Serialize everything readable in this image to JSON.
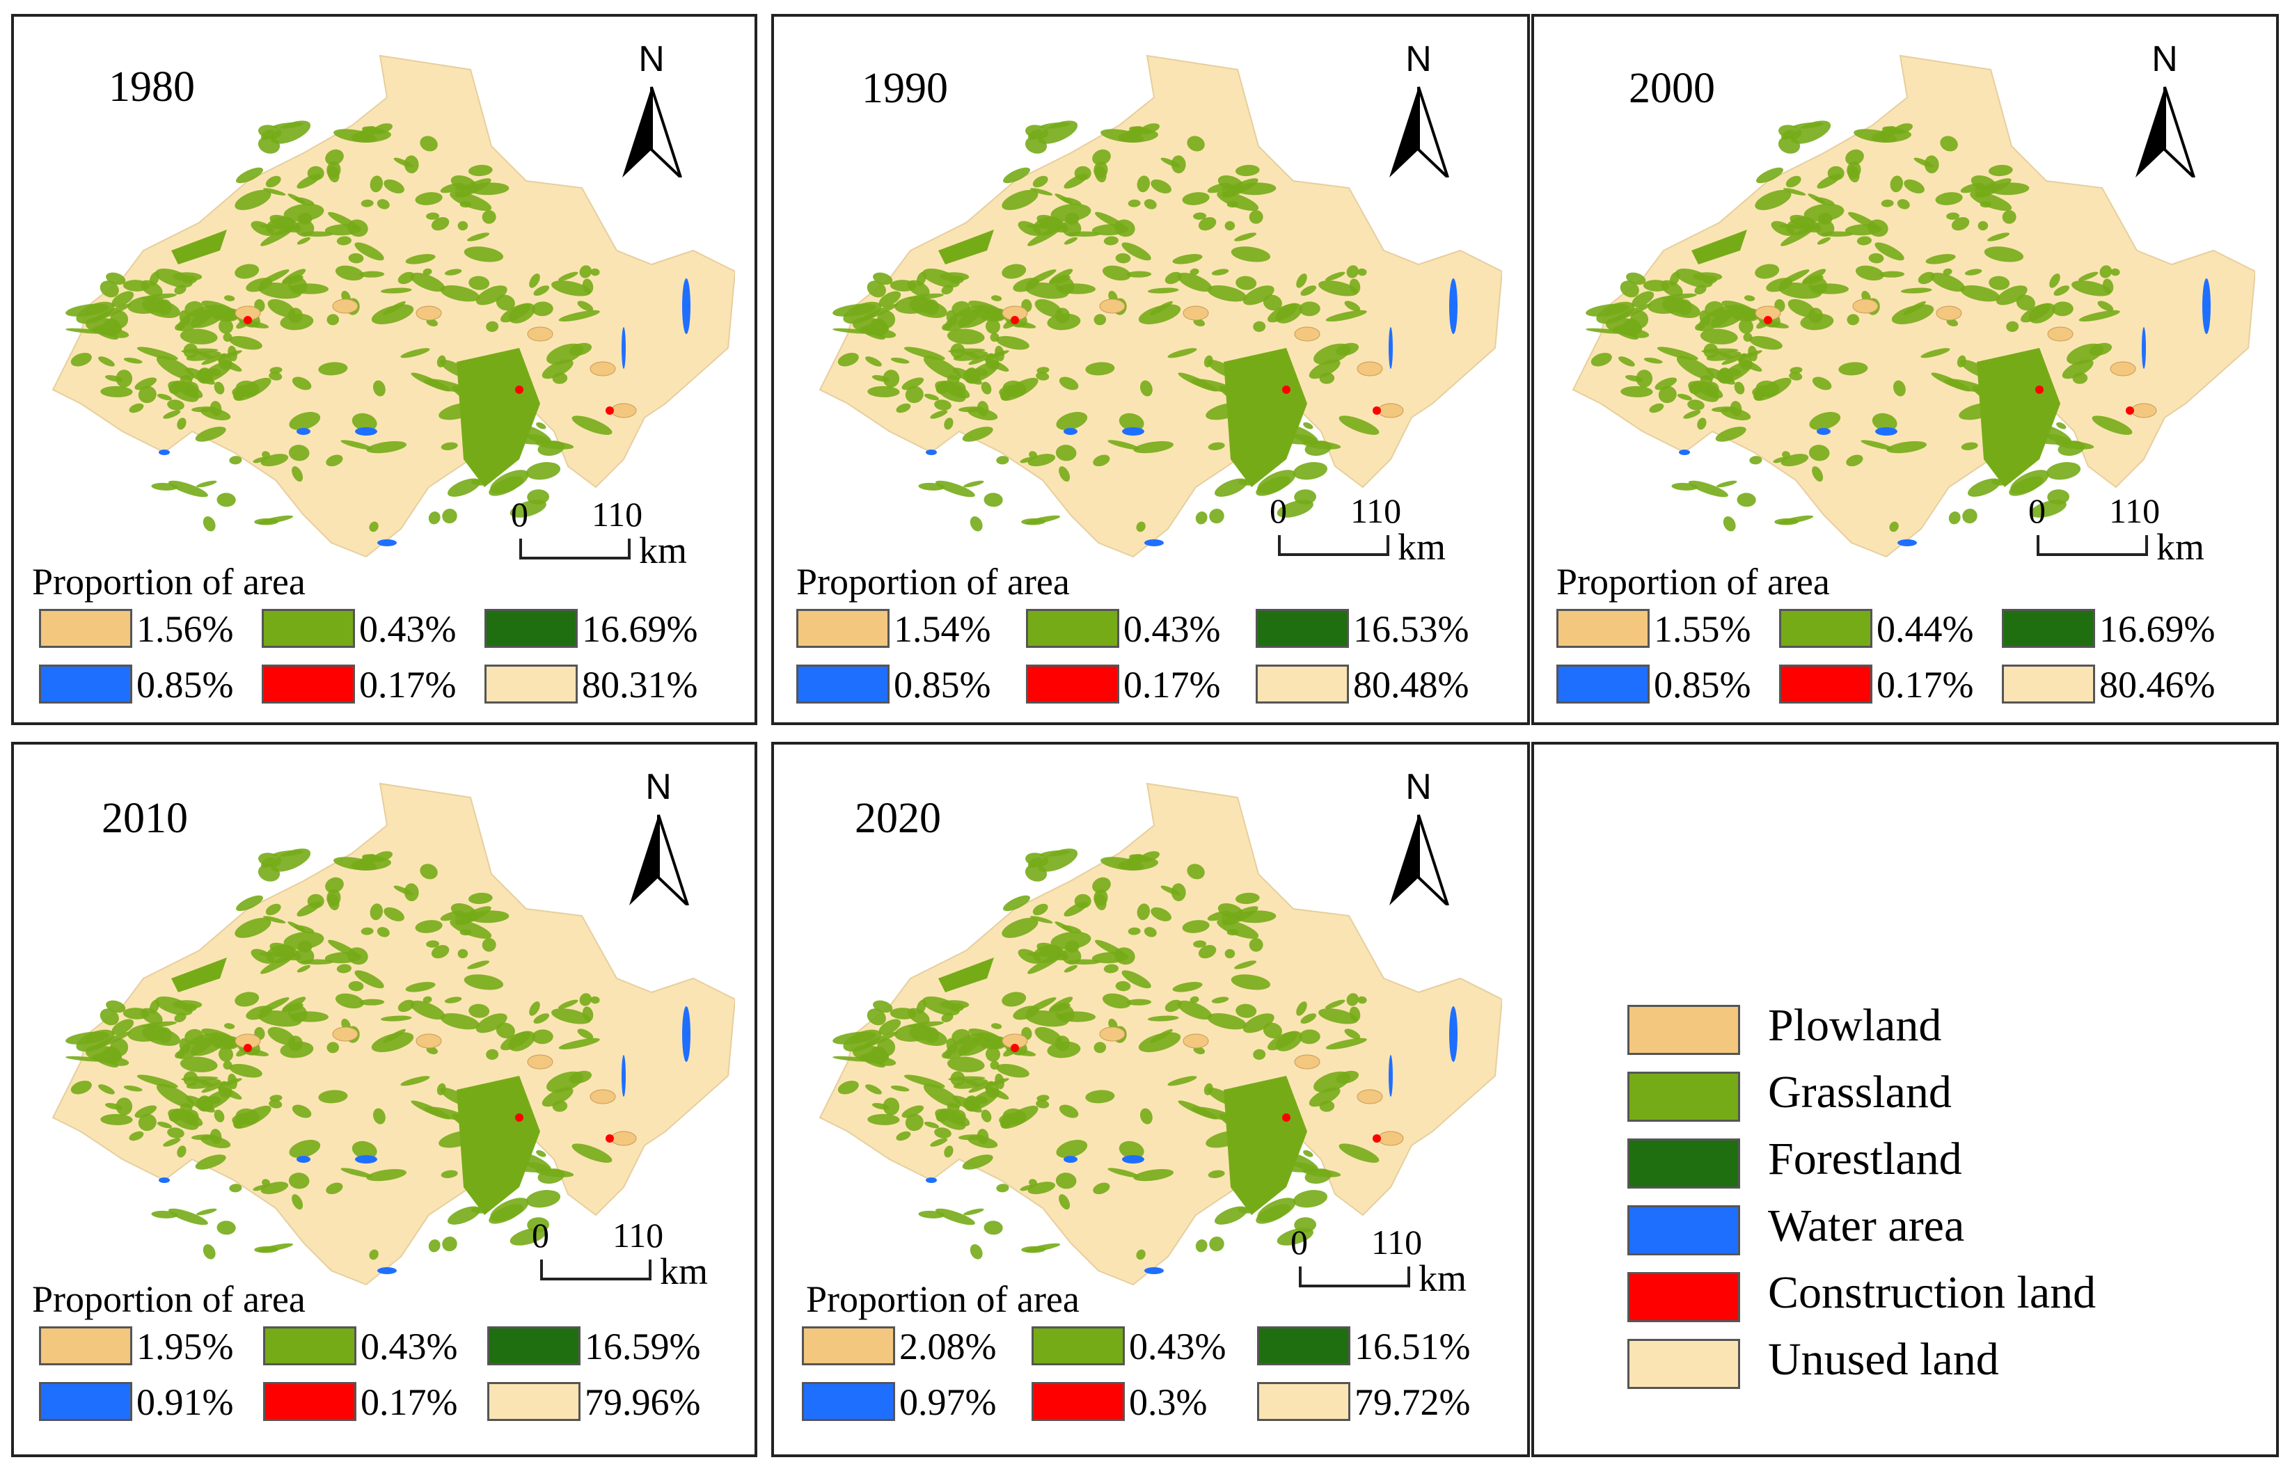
{
  "colors": {
    "plowland": "#f3c77e",
    "grassland": "#76ab18",
    "forestland": "#1f6f10",
    "water": "#1f6fff",
    "construction": "#ff0000",
    "unused": "#fbe4b4"
  },
  "panels": [
    {
      "year": "1980",
      "scale0": "0",
      "scale110": "110",
      "km": "km",
      "prop_title": "Proportion of area",
      "north": "N",
      "values": {
        "plowland": "1.56%",
        "grassland": "0.43%",
        "forestland": "16.69%",
        "water": "0.85%",
        "construction": "0.17%",
        "unused": "80.31%"
      }
    },
    {
      "year": "1990",
      "scale0": "0",
      "scale110": "110",
      "km": "km",
      "prop_title": "Proportion of area",
      "north": "N",
      "values": {
        "plowland": "1.54%",
        "grassland": "0.43%",
        "forestland": "16.53%",
        "water": "0.85%",
        "construction": "0.17%",
        "unused": "80.48%"
      }
    },
    {
      "year": "2000",
      "scale0": "0",
      "scale110": "110",
      "km": "km",
      "prop_title": "Proportion of area",
      "north": "N",
      "values": {
        "plowland": "1.55%",
        "grassland": "0.44%",
        "forestland": "16.69%",
        "water": "0.85%",
        "construction": "0.17%",
        "unused": "80.46%"
      }
    },
    {
      "year": "2010",
      "scale0": "0",
      "scale110": "110",
      "km": "km",
      "prop_title": "Proportion of area",
      "north": "N",
      "values": {
        "plowland": "1.95%",
        "grassland": "0.43%",
        "forestland": "16.59%",
        "water": "0.91%",
        "construction": "0.17%",
        "unused": "79.96%"
      }
    },
    {
      "year": "2020",
      "scale0": "0",
      "scale110": "110",
      "km": "km",
      "prop_title": "Proportion of area",
      "north": "N",
      "values": {
        "plowland": "2.08%",
        "grassland": "0.43%",
        "forestland": "16.51%",
        "water": "0.97%",
        "construction": "0.3%",
        "unused": "79.72%"
      }
    }
  ],
  "legend": [
    {
      "key": "plowland",
      "label": "Plowland"
    },
    {
      "key": "grassland",
      "label": "Grassland"
    },
    {
      "key": "forestland",
      "label": "Forestland"
    },
    {
      "key": "water",
      "label": "Water area"
    },
    {
      "key": "construction",
      "label": "Construction land"
    },
    {
      "key": "unused",
      "label": "Unused land"
    }
  ]
}
